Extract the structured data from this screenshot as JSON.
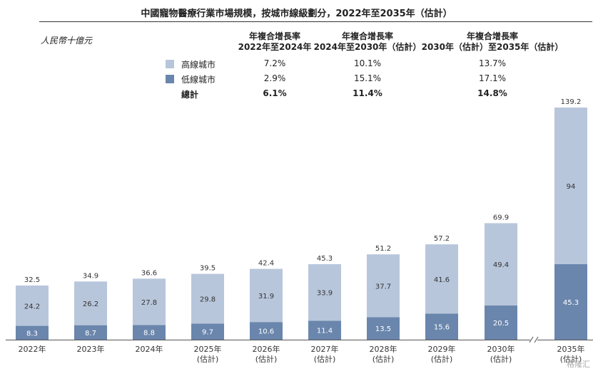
{
  "title": "中國寵物醫療行業市場規模，按城市線級劃分，2022年至2035年（估計）",
  "unit_label": "人民幣十億元",
  "cagr_table": {
    "headers": [
      [
        "年複合增長率",
        "2022年至2024年"
      ],
      [
        "年複合增長率",
        "2024年至2030年（估計）"
      ],
      [
        "年複合增長率",
        "2030年（估計）至2035年（估計）"
      ]
    ],
    "rows": [
      {
        "label": "高線城市",
        "values": [
          "7.2%",
          "10.1%",
          "13.7%"
        ],
        "color": "#b8c6db"
      },
      {
        "label": "低線城市",
        "values": [
          "2.9%",
          "15.1%",
          "17.1%"
        ],
        "color": "#6a86ac"
      },
      {
        "label": "總計",
        "values": [
          "6.1%",
          "11.4%",
          "14.8%"
        ]
      }
    ]
  },
  "watermark": "格隆汇",
  "chart_data": {
    "type": "bar",
    "stacked": true,
    "categories": [
      "2022年",
      "2023年",
      "2024年",
      "2025年\n(估計)",
      "2026年\n(估計)",
      "2027年\n(估計)",
      "2028年\n(估計)",
      "2029年\n(估計)",
      "2030年\n(估計)",
      "2035年\n(估計)"
    ],
    "series": [
      {
        "name": "低線城市",
        "values": [
          8.3,
          8.7,
          8.8,
          9.7,
          10.6,
          11.4,
          13.5,
          15.6,
          20.5,
          45.3
        ],
        "color": "#6a86ac"
      },
      {
        "name": "高線城市",
        "values": [
          24.2,
          26.2,
          27.8,
          29.8,
          31.9,
          33.9,
          37.7,
          41.6,
          49.4,
          94.0
        ],
        "color": "#b8c6db"
      }
    ],
    "totals": [
      32.5,
      34.9,
      36.6,
      39.5,
      42.4,
      45.3,
      51.2,
      57.2,
      69.9,
      139.2
    ],
    "axis_break_before_last": true,
    "ylim": [
      0,
      140
    ]
  }
}
